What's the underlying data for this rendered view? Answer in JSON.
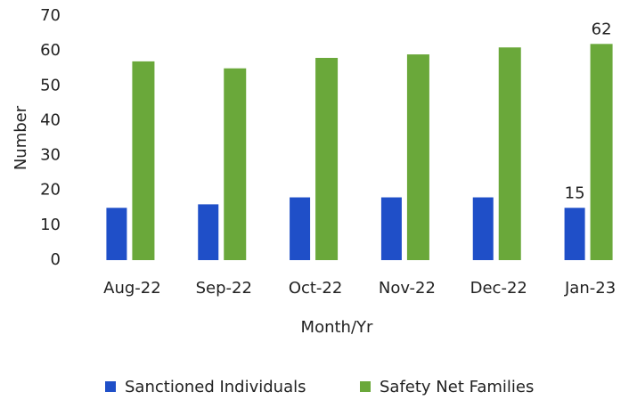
{
  "chart_data": {
    "type": "bar",
    "categories": [
      "Aug-22",
      "Sep-22",
      "Oct-22",
      "Nov-22",
      "Dec-22",
      "Jan-23"
    ],
    "series": [
      {
        "name": "Sanctioned Individuals",
        "color": "#1f4fc8",
        "values": [
          15,
          16,
          18,
          18,
          18,
          15
        ],
        "value_labels": [
          null,
          null,
          null,
          null,
          null,
          "15"
        ]
      },
      {
        "name": "Safety Net Families",
        "color": "#6aa83a",
        "values": [
          57,
          55,
          58,
          59,
          61,
          62
        ],
        "value_labels": [
          null,
          null,
          null,
          null,
          null,
          "62"
        ]
      }
    ],
    "x_label": "Month/Yr",
    "y_label": "Number",
    "ylim": [
      0,
      70
    ],
    "yticks": [
      0,
      10,
      20,
      30,
      40,
      50,
      60,
      70
    ],
    "grid": false,
    "legend": "bottom"
  }
}
